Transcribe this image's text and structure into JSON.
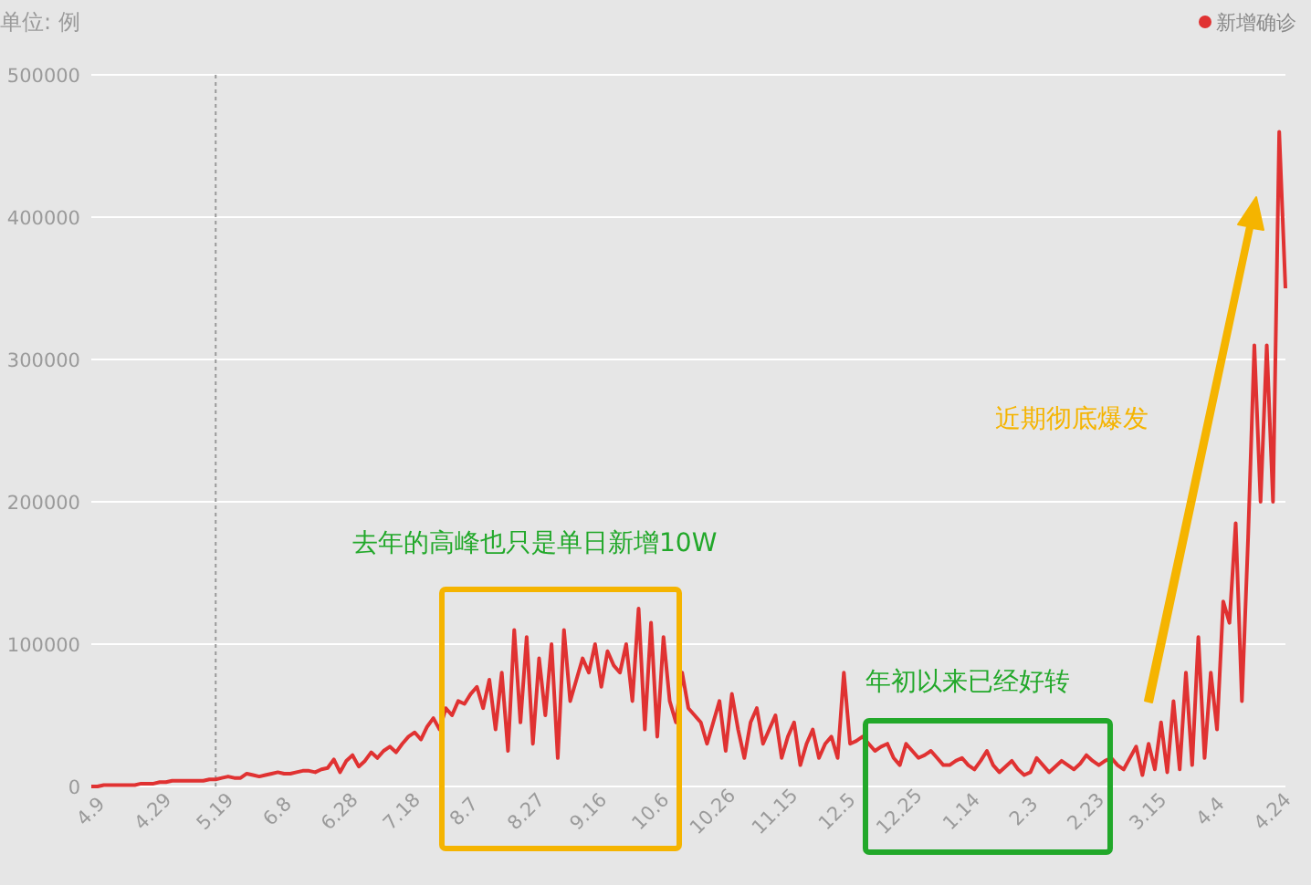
{
  "chart_data": {
    "type": "line",
    "ylabel": "单位: 例",
    "annotations": [
      "去年的高峰也只是单日新增10W",
      "年初以来已经好转",
      "近期彻底爆发"
    ],
    "categories": [
      "4.9",
      null,
      null,
      null,
      null,
      null,
      null,
      null,
      null,
      null,
      "4.29",
      null,
      null,
      null,
      null,
      null,
      null,
      null,
      null,
      null,
      "5.19",
      null,
      null,
      null,
      null,
      null,
      null,
      null,
      null,
      null,
      "6.8",
      null,
      null,
      null,
      null,
      null,
      null,
      null,
      null,
      null,
      "6.28",
      null,
      null,
      null,
      null,
      null,
      null,
      null,
      null,
      null,
      "7.18",
      null,
      null,
      null,
      null,
      null,
      null,
      null,
      null,
      null,
      "8.7",
      null,
      null,
      null,
      null,
      null,
      null,
      null,
      null,
      null,
      "8.27",
      null,
      null,
      null,
      null,
      null,
      null,
      null,
      null,
      null,
      "9.16",
      null,
      null,
      null,
      null,
      null,
      null,
      null,
      null,
      null,
      "10.6",
      null,
      null,
      null,
      null,
      null,
      null,
      null,
      null,
      null,
      "10.26",
      null,
      null,
      null,
      null,
      null,
      null,
      null,
      null,
      null,
      "11.15",
      null,
      null,
      null,
      null,
      null,
      null,
      null,
      null,
      null,
      "12.5",
      null,
      null,
      null,
      null,
      null,
      null,
      null,
      null,
      null,
      "12.25",
      null,
      null,
      null,
      null,
      null,
      null,
      null,
      null,
      null,
      "1.14",
      null,
      null,
      null,
      null,
      null,
      null,
      null,
      null,
      null,
      "2.3",
      null,
      null,
      null,
      null,
      null,
      null,
      null,
      null,
      null,
      "2.23",
      null,
      null,
      null,
      null,
      null,
      null,
      null,
      null,
      null,
      "3.15",
      null,
      null,
      null,
      null,
      null,
      null,
      null,
      null,
      null,
      "4.4",
      null,
      null,
      null,
      null,
      null,
      null,
      null,
      null,
      null,
      "4.24",
      null,
      null
    ],
    "series": [
      {
        "name": "新增确诊",
        "color": "#e03232",
        "values": [
          0,
          0,
          1000,
          1000,
          1000,
          1000,
          1000,
          1000,
          2000,
          2000,
          2000,
          3000,
          3000,
          4000,
          4000,
          4000,
          4000,
          4000,
          4000,
          5000,
          5000,
          6000,
          7000,
          6000,
          6000,
          9000,
          8000,
          7000,
          8000,
          9000,
          10000,
          9000,
          9000,
          10000,
          11000,
          11000,
          10000,
          12000,
          13000,
          19000,
          10000,
          18000,
          22000,
          14000,
          18000,
          24000,
          20000,
          25000,
          28000,
          24000,
          30000,
          35000,
          38000,
          33000,
          42000,
          48000,
          40000,
          55000,
          50000,
          60000,
          58000,
          65000,
          70000,
          55000,
          75000,
          40000,
          80000,
          25000,
          110000,
          45000,
          105000,
          30000,
          90000,
          50000,
          100000,
          20000,
          110000,
          60000,
          75000,
          90000,
          80000,
          100000,
          70000,
          95000,
          85000,
          80000,
          100000,
          60000,
          125000,
          40000,
          115000,
          35000,
          105000,
          60000,
          45000,
          80000,
          55000,
          50000,
          45000,
          30000,
          45000,
          60000,
          25000,
          65000,
          40000,
          20000,
          45000,
          55000,
          30000,
          40000,
          50000,
          20000,
          35000,
          45000,
          15000,
          30000,
          40000,
          20000,
          30000,
          35000,
          20000,
          80000,
          30000,
          32000,
          35000,
          30000,
          25000,
          28000,
          30000,
          20000,
          15000,
          30000,
          25000,
          20000,
          22000,
          25000,
          20000,
          15000,
          15000,
          18000,
          20000,
          15000,
          12000,
          18000,
          25000,
          15000,
          10000,
          14000,
          18000,
          12000,
          8000,
          10000,
          20000,
          15000,
          10000,
          14000,
          18000,
          15000,
          12000,
          16000,
          22000,
          18000,
          15000,
          18000,
          20000,
          15000,
          12000,
          20000,
          28000,
          8000,
          30000,
          12000,
          45000,
          10000,
          60000,
          12000,
          80000,
          15000,
          105000,
          20000,
          80000,
          40000,
          130000,
          115000,
          185000,
          60000,
          175000,
          310000,
          200000,
          310000,
          200000,
          460000,
          350000
        ]
      }
    ],
    "ylim": [
      0,
      500000
    ],
    "yticks": [
      0,
      100000,
      200000,
      300000,
      400000,
      500000
    ],
    "grid": "y",
    "legend": "top right",
    "ref_lines": [
      {
        "axis": "x",
        "value": "5.19",
        "color": "#999999",
        "line_style": "dotted"
      }
    ]
  }
}
